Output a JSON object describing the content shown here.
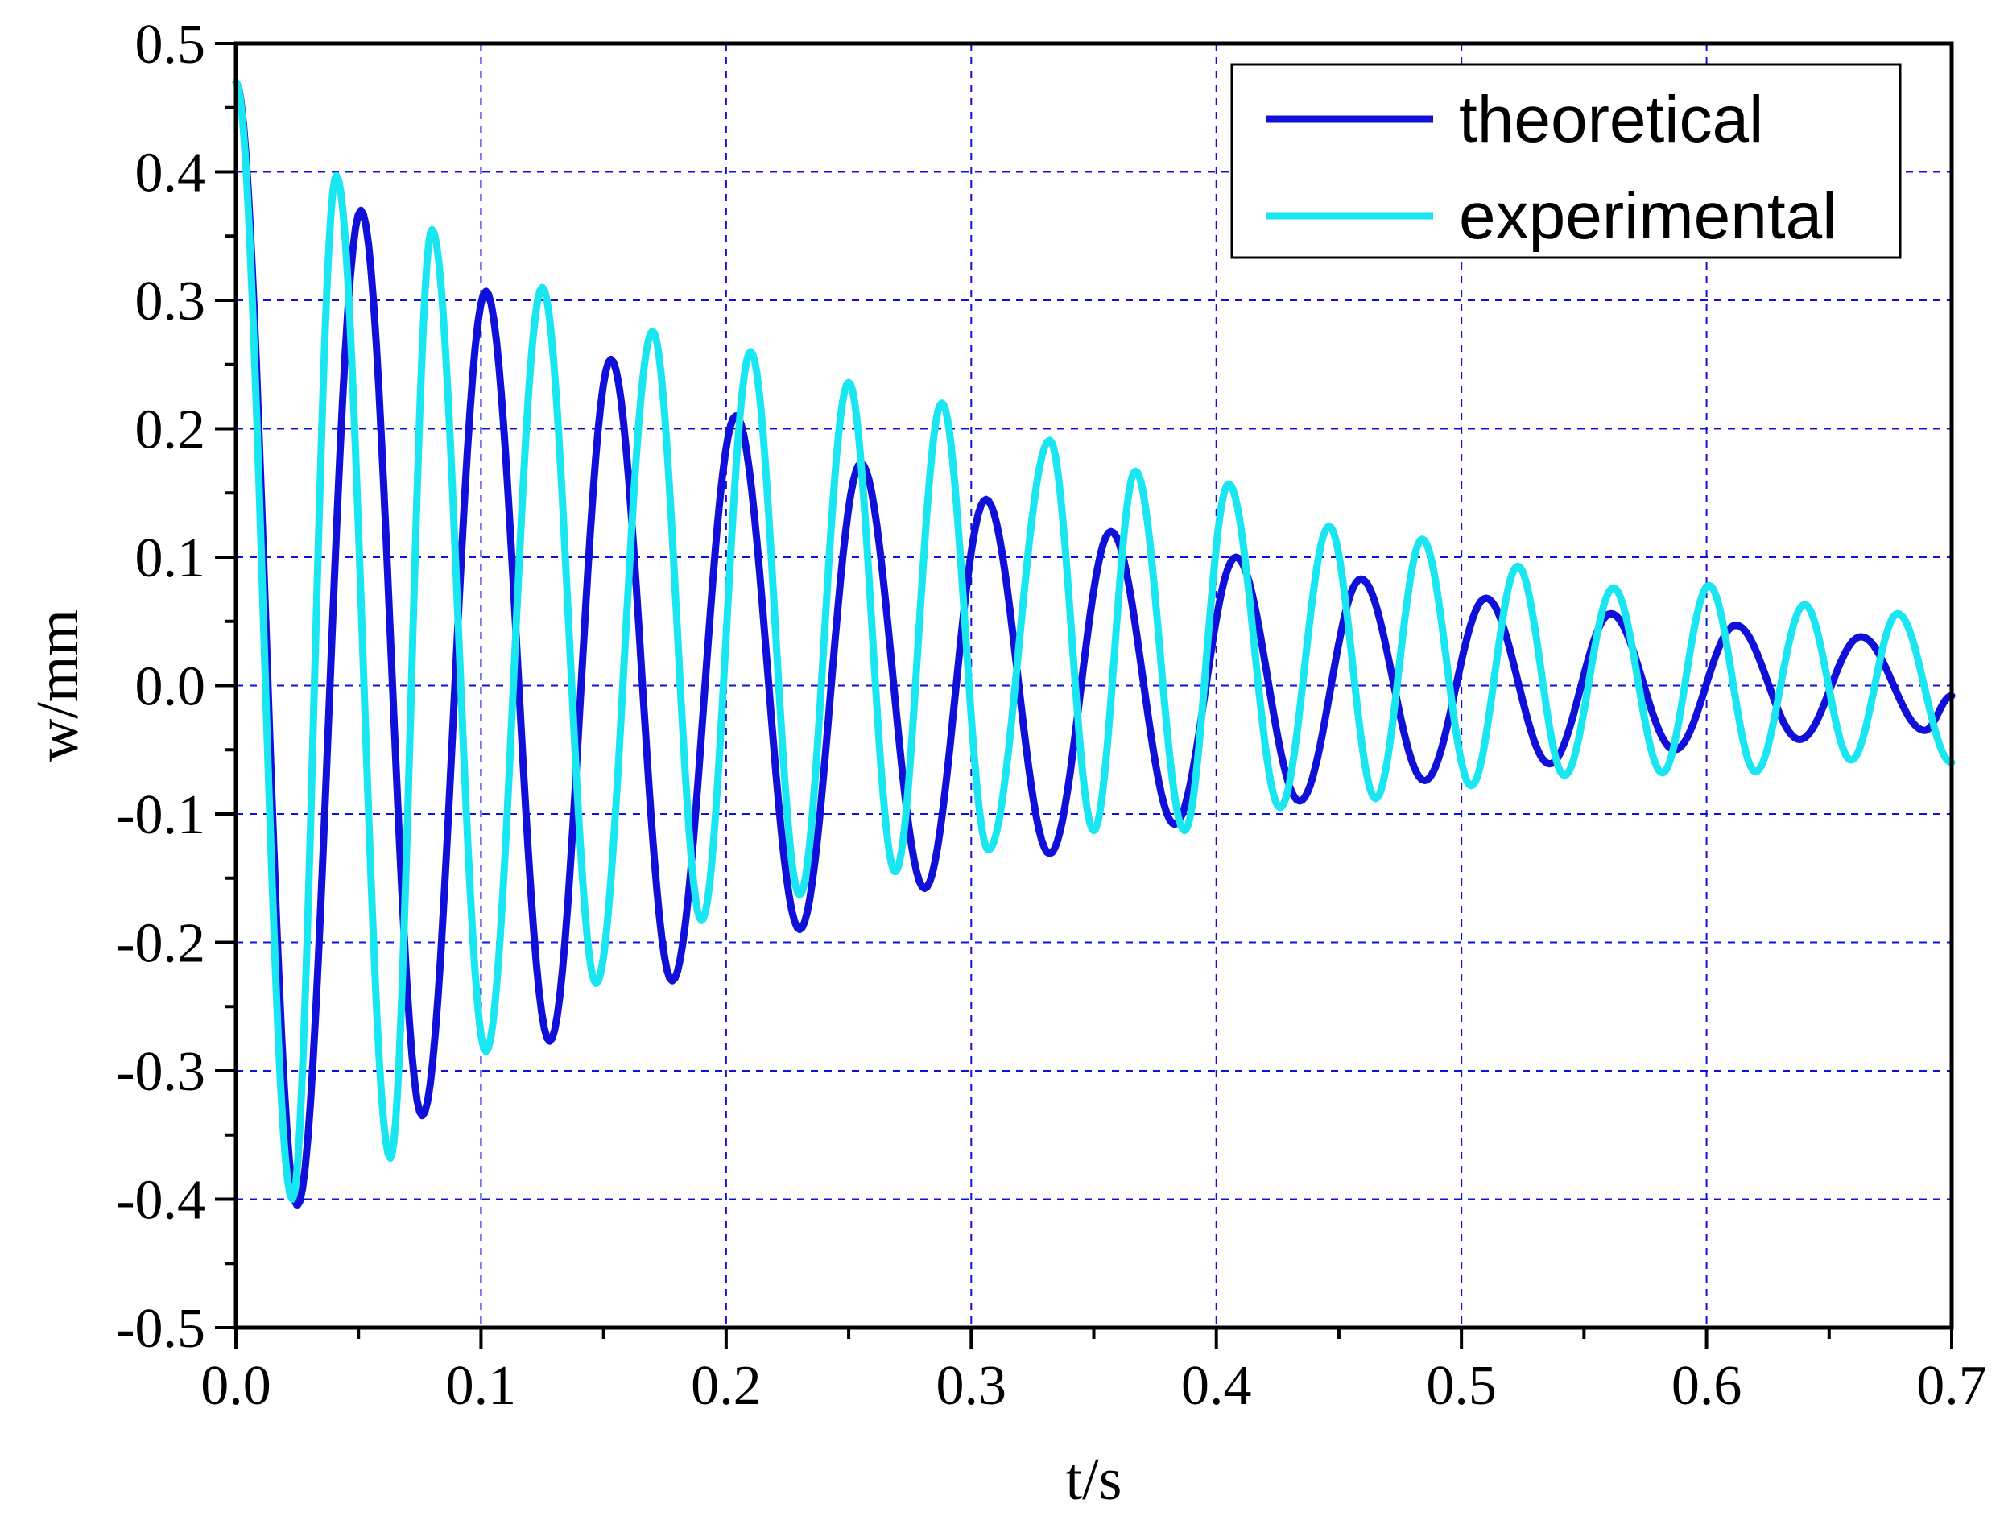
{
  "chart_data": {
    "type": "line",
    "title": "",
    "xlabel": "t/s",
    "ylabel": "w/mm",
    "xlim": [
      0,
      0.7
    ],
    "ylim": [
      -0.5,
      0.5
    ],
    "x_ticks": [
      "0.0",
      "0.1",
      "0.2",
      "0.3",
      "0.4",
      "0.5",
      "0.6",
      "0.7"
    ],
    "y_ticks": [
      "-0.5",
      "-0.4",
      "-0.3",
      "-0.2",
      "-0.1",
      "0.0",
      "0.1",
      "0.2",
      "0.3",
      "0.4",
      "0.5"
    ],
    "grid": true,
    "legend_position": "top-right",
    "series": [
      {
        "name": "theoretical",
        "color": "#1010d8",
        "points": [
          [
            0.0,
            0.47
          ],
          [
            0.025,
            -0.405
          ],
          [
            0.051,
            0.37
          ],
          [
            0.076,
            -0.335
          ],
          [
            0.102,
            0.307
          ],
          [
            0.128,
            -0.277
          ],
          [
            0.153,
            0.254
          ],
          [
            0.178,
            -0.23
          ],
          [
            0.204,
            0.21
          ],
          [
            0.23,
            -0.19
          ],
          [
            0.255,
            0.173
          ],
          [
            0.281,
            -0.158
          ],
          [
            0.306,
            0.145
          ],
          [
            0.332,
            -0.131
          ],
          [
            0.357,
            0.12
          ],
          [
            0.383,
            -0.108
          ],
          [
            0.408,
            0.1
          ],
          [
            0.434,
            -0.09
          ],
          [
            0.459,
            0.083
          ],
          [
            0.485,
            -0.074
          ],
          [
            0.51,
            0.068
          ],
          [
            0.536,
            -0.061
          ],
          [
            0.561,
            0.056
          ],
          [
            0.587,
            -0.05
          ],
          [
            0.612,
            0.047
          ],
          [
            0.638,
            -0.042
          ],
          [
            0.663,
            0.038
          ],
          [
            0.689,
            -0.035
          ],
          [
            0.7,
            -0.008
          ]
        ]
      },
      {
        "name": "experimental",
        "color": "#19e6f0",
        "points": [
          [
            0.0,
            0.47
          ],
          [
            0.023,
            -0.4
          ],
          [
            0.041,
            0.397
          ],
          [
            0.063,
            -0.368
          ],
          [
            0.08,
            0.355
          ],
          [
            0.102,
            -0.285
          ],
          [
            0.125,
            0.31
          ],
          [
            0.147,
            -0.232
          ],
          [
            0.17,
            0.276
          ],
          [
            0.19,
            -0.183
          ],
          [
            0.21,
            0.26
          ],
          [
            0.23,
            -0.163
          ],
          [
            0.25,
            0.236
          ],
          [
            0.269,
            -0.145
          ],
          [
            0.288,
            0.22
          ],
          [
            0.307,
            -0.128
          ],
          [
            0.332,
            0.191
          ],
          [
            0.35,
            -0.113
          ],
          [
            0.367,
            0.167
          ],
          [
            0.387,
            -0.113
          ],
          [
            0.405,
            0.157
          ],
          [
            0.426,
            -0.095
          ],
          [
            0.446,
            0.124
          ],
          [
            0.465,
            -0.088
          ],
          [
            0.484,
            0.114
          ],
          [
            0.504,
            -0.078
          ],
          [
            0.523,
            0.093
          ],
          [
            0.542,
            -0.07
          ],
          [
            0.562,
            0.076
          ],
          [
            0.582,
            -0.068
          ],
          [
            0.601,
            0.078
          ],
          [
            0.62,
            -0.067
          ],
          [
            0.64,
            0.063
          ],
          [
            0.659,
            -0.058
          ],
          [
            0.678,
            0.056
          ],
          [
            0.7,
            -0.06
          ]
        ]
      }
    ]
  }
}
